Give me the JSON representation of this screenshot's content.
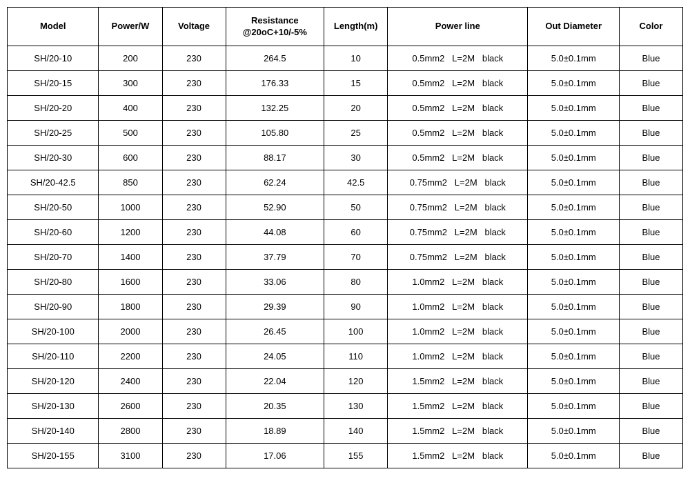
{
  "table": {
    "columns": [
      {
        "key": "model",
        "label": "Model",
        "class": "col-model"
      },
      {
        "key": "power",
        "label": "Power/W",
        "class": "col-power"
      },
      {
        "key": "voltage",
        "label": "Voltage",
        "class": "col-voltage"
      },
      {
        "key": "resistance",
        "label": "Resistance\n@20oC+10/-5%",
        "class": "col-resist"
      },
      {
        "key": "length",
        "label": "Length(m)",
        "class": "col-length"
      },
      {
        "key": "powerline",
        "label": "Power line",
        "class": "col-pline"
      },
      {
        "key": "diameter",
        "label": "Out Diameter",
        "class": "col-diam"
      },
      {
        "key": "color",
        "label": "Color",
        "class": "col-color"
      }
    ],
    "rows": [
      {
        "model": "SH/20-10",
        "power": "200",
        "voltage": "230",
        "resistance": "264.5",
        "length": "10",
        "powerline": "0.5mm2   L=2M   black",
        "diameter": "5.0±0.1mm",
        "color": "Blue"
      },
      {
        "model": "SH/20-15",
        "power": "300",
        "voltage": "230",
        "resistance": "176.33",
        "length": "15",
        "powerline": "0.5mm2   L=2M   black",
        "diameter": "5.0±0.1mm",
        "color": "Blue"
      },
      {
        "model": "SH/20-20",
        "power": "400",
        "voltage": "230",
        "resistance": "132.25",
        "length": "20",
        "powerline": "0.5mm2   L=2M   black",
        "diameter": "5.0±0.1mm",
        "color": "Blue"
      },
      {
        "model": "SH/20-25",
        "power": "500",
        "voltage": "230",
        "resistance": "105.80",
        "length": "25",
        "powerline": "0.5mm2   L=2M   black",
        "diameter": "5.0±0.1mm",
        "color": "Blue"
      },
      {
        "model": "SH/20-30",
        "power": "600",
        "voltage": "230",
        "resistance": "88.17",
        "length": "30",
        "powerline": "0.5mm2   L=2M   black",
        "diameter": "5.0±0.1mm",
        "color": "Blue"
      },
      {
        "model": "SH/20-42.5",
        "power": "850",
        "voltage": "230",
        "resistance": "62.24",
        "length": "42.5",
        "powerline": "0.75mm2   L=2M   black",
        "diameter": "5.0±0.1mm",
        "color": "Blue"
      },
      {
        "model": "SH/20-50",
        "power": "1000",
        "voltage": "230",
        "resistance": "52.90",
        "length": "50",
        "powerline": "0.75mm2   L=2M   black",
        "diameter": "5.0±0.1mm",
        "color": "Blue"
      },
      {
        "model": "SH/20-60",
        "power": "1200",
        "voltage": "230",
        "resistance": "44.08",
        "length": "60",
        "powerline": "0.75mm2   L=2M   black",
        "diameter": "5.0±0.1mm",
        "color": "Blue"
      },
      {
        "model": "SH/20-70",
        "power": "1400",
        "voltage": "230",
        "resistance": "37.79",
        "length": "70",
        "powerline": "0.75mm2   L=2M   black",
        "diameter": "5.0±0.1mm",
        "color": "Blue"
      },
      {
        "model": "SH/20-80",
        "power": "1600",
        "voltage": "230",
        "resistance": "33.06",
        "length": "80",
        "powerline": "1.0mm2   L=2M   black",
        "diameter": "5.0±0.1mm",
        "color": "Blue"
      },
      {
        "model": "SH/20-90",
        "power": "1800",
        "voltage": "230",
        "resistance": "29.39",
        "length": "90",
        "powerline": "1.0mm2   L=2M   black",
        "diameter": "5.0±0.1mm",
        "color": "Blue"
      },
      {
        "model": "SH/20-100",
        "power": "2000",
        "voltage": "230",
        "resistance": "26.45",
        "length": "100",
        "powerline": "1.0mm2   L=2M   black",
        "diameter": "5.0±0.1mm",
        "color": "Blue"
      },
      {
        "model": "SH/20-110",
        "power": "2200",
        "voltage": "230",
        "resistance": "24.05",
        "length": "110",
        "powerline": "1.0mm2   L=2M   black",
        "diameter": "5.0±0.1mm",
        "color": "Blue"
      },
      {
        "model": "SH/20-120",
        "power": "2400",
        "voltage": "230",
        "resistance": "22.04",
        "length": "120",
        "powerline": "1.5mm2   L=2M   black",
        "diameter": "5.0±0.1mm",
        "color": "Blue"
      },
      {
        "model": "SH/20-130",
        "power": "2600",
        "voltage": "230",
        "resistance": "20.35",
        "length": "130",
        "powerline": "1.5mm2   L=2M   black",
        "diameter": "5.0±0.1mm",
        "color": "Blue"
      },
      {
        "model": "SH/20-140",
        "power": "2800",
        "voltage": "230",
        "resistance": "18.89",
        "length": "140",
        "powerline": "1.5mm2   L=2M   black",
        "diameter": "5.0±0.1mm",
        "color": "Blue"
      },
      {
        "model": "SH/20-155",
        "power": "3100",
        "voltage": "230",
        "resistance": "17.06",
        "length": "155",
        "powerline": "1.5mm2   L=2M   black",
        "diameter": "5.0±0.1mm",
        "color": "Blue"
      }
    ]
  }
}
